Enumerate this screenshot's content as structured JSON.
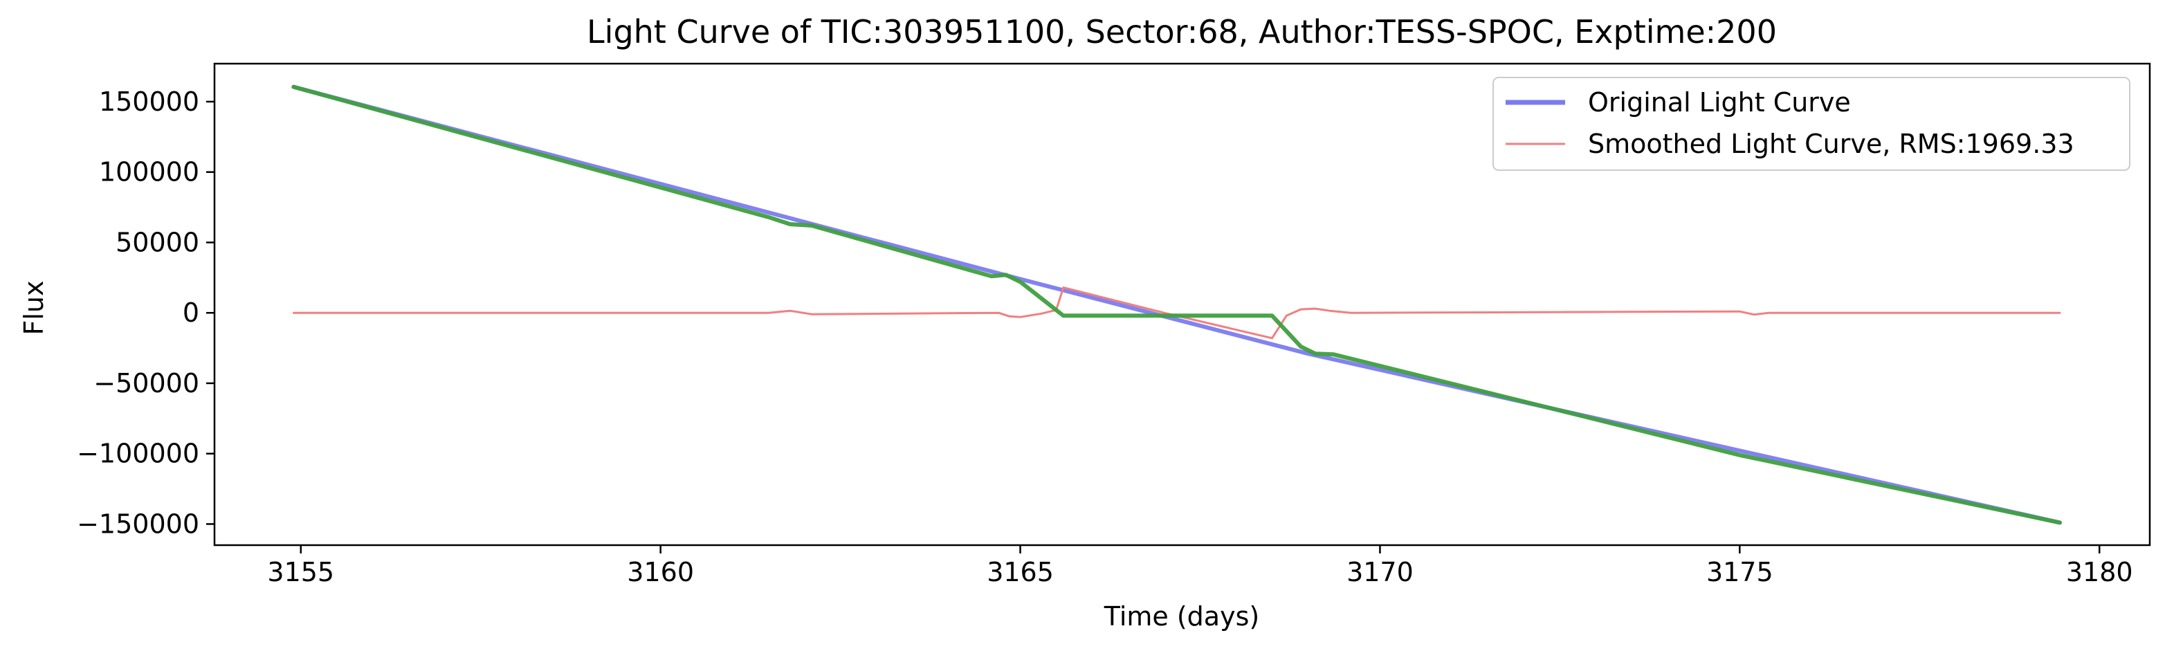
{
  "chart_data": {
    "type": "line",
    "title": "Light Curve of TIC:303951100, Sector:68, Author:TESS-SPOC, Exptime:200",
    "xlabel": "Time (days)",
    "ylabel": "Flux",
    "xlim": [
      3153.8,
      3180.7
    ],
    "ylim": [
      -165000,
      177000
    ],
    "xticks": [
      3155,
      3160,
      3165,
      3170,
      3175,
      3180
    ],
    "yticks": [
      150000,
      100000,
      50000,
      0,
      -50000,
      -100000,
      -150000
    ],
    "xtick_labels": [
      "3155",
      "3160",
      "3165",
      "3170",
      "3175",
      "3180"
    ],
    "ytick_labels": [
      "150000",
      "100000",
      "50000",
      "0",
      "−50000",
      "−100000",
      "−150000"
    ],
    "grid": false,
    "legend_position": "top-right",
    "series": [
      {
        "name": "Original Light Curve",
        "color": "#7b7bef",
        "style": "thick",
        "x": [
          3154.9,
          3165.0,
          3169.0,
          3179.45
        ],
        "y": [
          160500,
          24000,
          -29000,
          -149000
        ]
      },
      {
        "name": "Smoothed Light Curve, RMS:1969.33",
        "color": "#f27f7f",
        "style": "thin",
        "x": [
          3154.9,
          3161.5,
          3161.8,
          3162.1,
          3164.7,
          3164.85,
          3165.0,
          3165.3,
          3165.5,
          3165.6,
          3167.0,
          3168.5,
          3168.7,
          3168.9,
          3169.1,
          3169.3,
          3169.6,
          3175.0,
          3175.2,
          3175.4,
          3179.45
        ],
        "y": [
          0,
          0,
          1500,
          -1000,
          0,
          -2500,
          -3000,
          -500,
          2000,
          18000,
          0,
          -18000,
          -2000,
          2500,
          3000,
          1500,
          0,
          1000,
          -1200,
          0,
          0
        ]
      },
      {
        "color": "#3f9f3f",
        "style": "thick",
        "x": [
          3154.9,
          3161.5,
          3161.8,
          3162.1,
          3164.6,
          3164.8,
          3165.0,
          3165.6,
          3168.5,
          3168.9,
          3169.1,
          3169.35,
          3175.0,
          3179.45
        ],
        "y": [
          160500,
          68000,
          63000,
          62000,
          26000,
          27000,
          22000,
          -2000,
          -2000,
          -24000,
          -29000,
          -29500,
          -101000,
          -149000
        ]
      }
    ]
  }
}
